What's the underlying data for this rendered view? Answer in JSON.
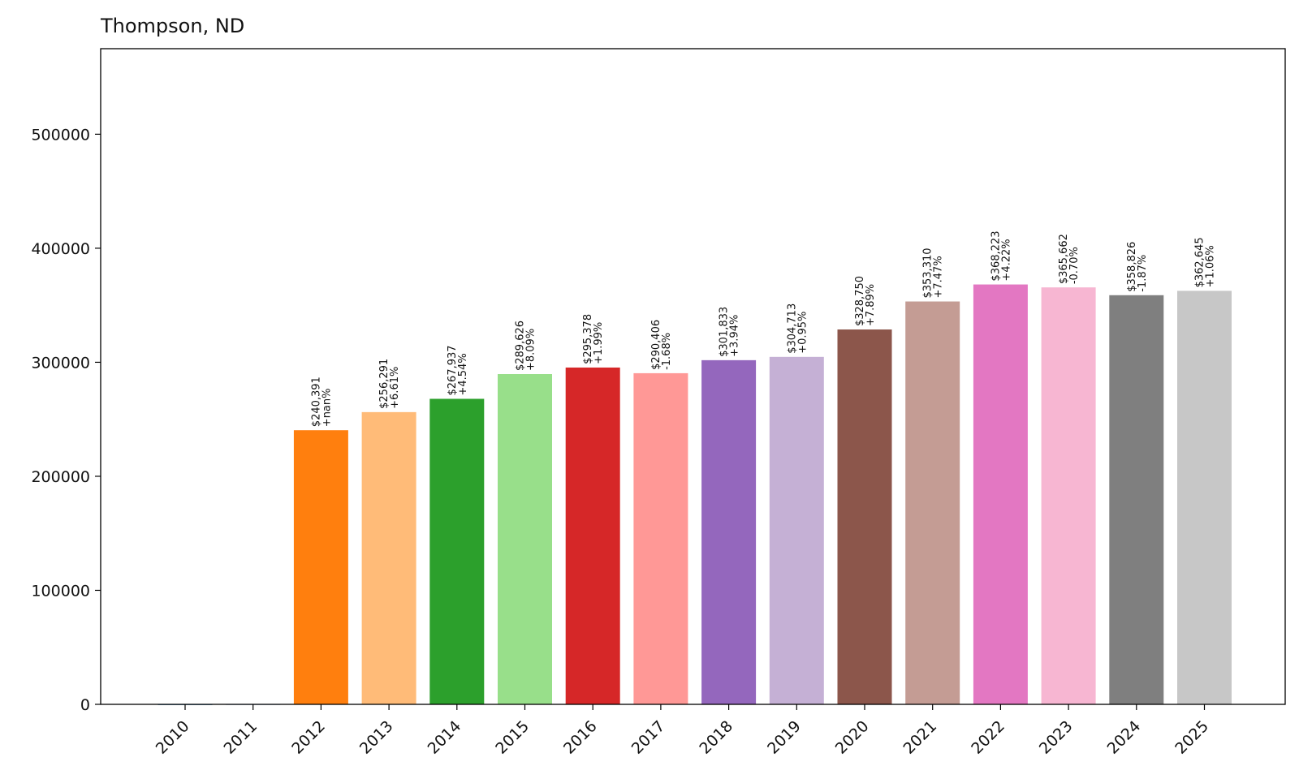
{
  "chart_data": {
    "type": "bar",
    "title": "Thompson, ND",
    "xlabel": "",
    "ylabel": "",
    "ylim": [
      0,
      575000
    ],
    "yticks": [
      0,
      100000,
      200000,
      300000,
      400000,
      500000
    ],
    "grid": false,
    "categories": [
      "2010",
      "2011",
      "2012",
      "2013",
      "2014",
      "2015",
      "2016",
      "2017",
      "2018",
      "2019",
      "2020",
      "2021",
      "2022",
      "2023",
      "2024",
      "2025"
    ],
    "values": [
      0,
      0,
      240391,
      256291,
      267937,
      289626,
      295378,
      290406,
      301833,
      304713,
      328750,
      353310,
      368223,
      365662,
      358826,
      362645
    ],
    "value_labels": [
      "",
      "",
      "$240,391",
      "$256,291",
      "$267,937",
      "$289,626",
      "$295,378",
      "$290,406",
      "$301,833",
      "$304,713",
      "$328,750",
      "$353,310",
      "$368,223",
      "$365,662",
      "$358,826",
      "$362,645"
    ],
    "change_labels": [
      "",
      "",
      "+nan%",
      "+6.61%",
      "+4.54%",
      "+8.09%",
      "+1.99%",
      "-1.68%",
      "+3.94%",
      "+0.95%",
      "+7.89%",
      "+7.47%",
      "+4.22%",
      "-0.70%",
      "-1.87%",
      "+1.06%"
    ],
    "colors": [
      "#1f77b4",
      "#aec7e8",
      "#ff7f0e",
      "#ffbb78",
      "#2ca02c",
      "#98df8a",
      "#d62728",
      "#ff9896",
      "#9467bd",
      "#c5b0d5",
      "#8c564b",
      "#c49c94",
      "#e377c2",
      "#f7b6d2",
      "#7f7f7f",
      "#c7c7c7"
    ]
  }
}
